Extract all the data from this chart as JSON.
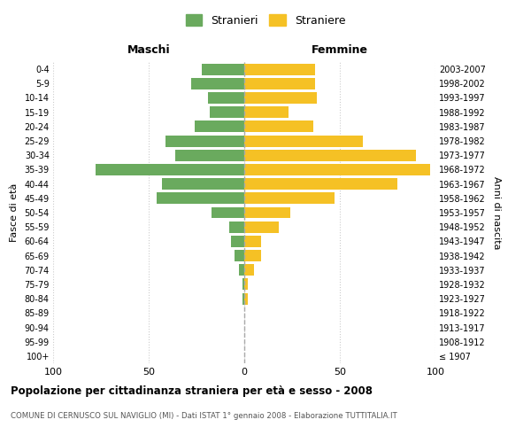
{
  "age_groups": [
    "100+",
    "95-99",
    "90-94",
    "85-89",
    "80-84",
    "75-79",
    "70-74",
    "65-69",
    "60-64",
    "55-59",
    "50-54",
    "45-49",
    "40-44",
    "35-39",
    "30-34",
    "25-29",
    "20-24",
    "15-19",
    "10-14",
    "5-9",
    "0-4"
  ],
  "birth_years": [
    "≤ 1907",
    "1908-1912",
    "1913-1917",
    "1918-1922",
    "1923-1927",
    "1928-1932",
    "1933-1937",
    "1938-1942",
    "1943-1947",
    "1948-1952",
    "1953-1957",
    "1958-1962",
    "1963-1967",
    "1968-1972",
    "1973-1977",
    "1978-1982",
    "1983-1987",
    "1988-1992",
    "1993-1997",
    "1998-2002",
    "2003-2007"
  ],
  "maschi": [
    0,
    0,
    0,
    0,
    1,
    1,
    3,
    5,
    7,
    8,
    17,
    46,
    43,
    78,
    36,
    41,
    26,
    18,
    19,
    28,
    22
  ],
  "femmine": [
    0,
    0,
    0,
    0,
    2,
    2,
    5,
    9,
    9,
    18,
    24,
    47,
    80,
    97,
    90,
    62,
    36,
    23,
    38,
    37,
    37
  ],
  "maschi_color": "#6aaa5e",
  "femmine_color": "#f5c125",
  "background_color": "#ffffff",
  "grid_color": "#cccccc",
  "title": "Popolazione per cittadinanza straniera per età e sesso - 2008",
  "subtitle": "COMUNE DI CERNUSCO SUL NAVIGLIO (MI) - Dati ISTAT 1° gennaio 2008 - Elaborazione TUTTITALIA.IT",
  "maschi_label": "Maschi",
  "femmine_label": "Femmine",
  "stranieri_label": "Stranieri",
  "straniere_label": "Straniere",
  "fasce_label": "Fasce di età",
  "anni_label": "Anni di nascita",
  "xlim": 100,
  "bar_height": 0.8
}
